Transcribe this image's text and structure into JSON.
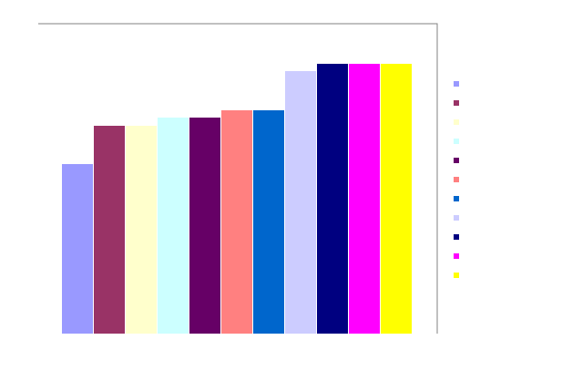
{
  "chart_data": {
    "type": "bar",
    "title": "",
    "xlabel": "",
    "ylabel": "",
    "categories": [
      "",
      "",
      "",
      "",
      "",
      "",
      "",
      "",
      "",
      "",
      ""
    ],
    "values": [
      186,
      228,
      228,
      237,
      237,
      245,
      245,
      288,
      296,
      296,
      296
    ],
    "ylim": [
      0,
      340
    ],
    "grid": false,
    "legend_position": "right",
    "series_colors": [
      "#9999ff",
      "#993366",
      "#ffffcc",
      "#ccffff",
      "#660066",
      "#ff8080",
      "#0066cc",
      "#ccccff",
      "#000080",
      "#ff00ff",
      "#ffff00"
    ]
  }
}
